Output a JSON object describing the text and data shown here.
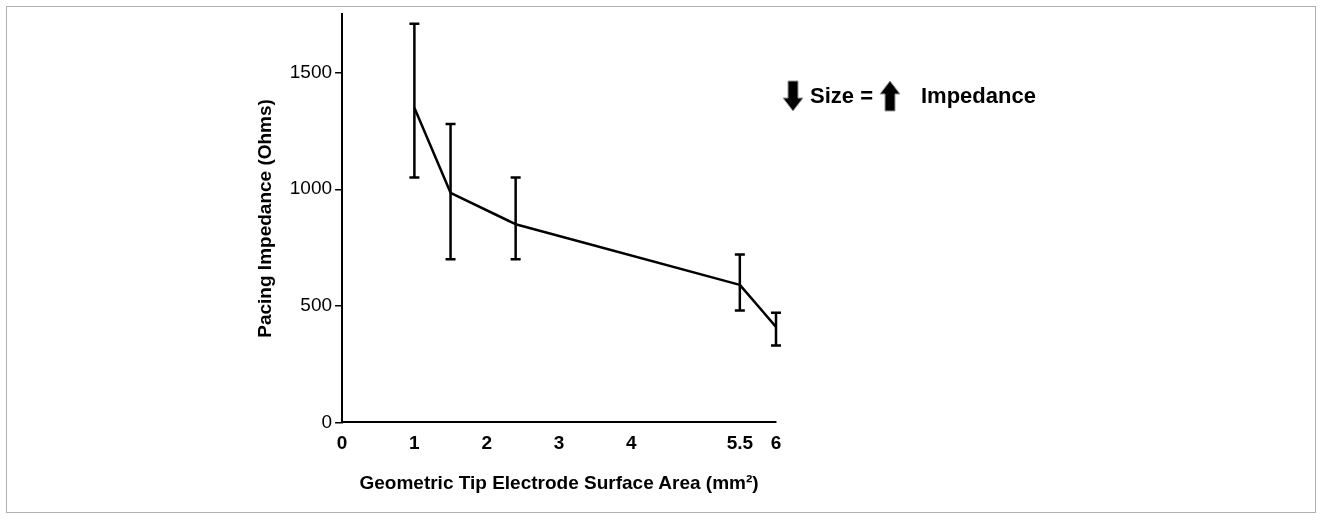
{
  "chart_data": {
    "type": "line",
    "xlabel": "Geometric Tip Electrode Surface Area (mm²)",
    "ylabel": "Pacing Impedance (Ohms)",
    "x": [
      1,
      1.5,
      2.4,
      5.5,
      6
    ],
    "series": [
      {
        "color": "#000000",
        "values": [
          1350,
          985,
          850,
          590,
          410
        ],
        "errors": [
          [
            1050,
            1710
          ],
          [
            700,
            1280
          ],
          [
            700,
            1050
          ],
          [
            480,
            720
          ],
          [
            330,
            470
          ]
        ]
      }
    ],
    "xlim": [
      0,
      6
    ],
    "xticks": [
      0,
      1,
      2,
      3,
      4,
      5.5,
      6
    ],
    "ylim": [
      0,
      1750
    ],
    "yticks": [
      0,
      500,
      1000,
      1500
    ],
    "grid": false,
    "legend": false,
    "marker": "none",
    "line_style": "solid",
    "annotations": [
      "Size =",
      "Impedance"
    ]
  }
}
